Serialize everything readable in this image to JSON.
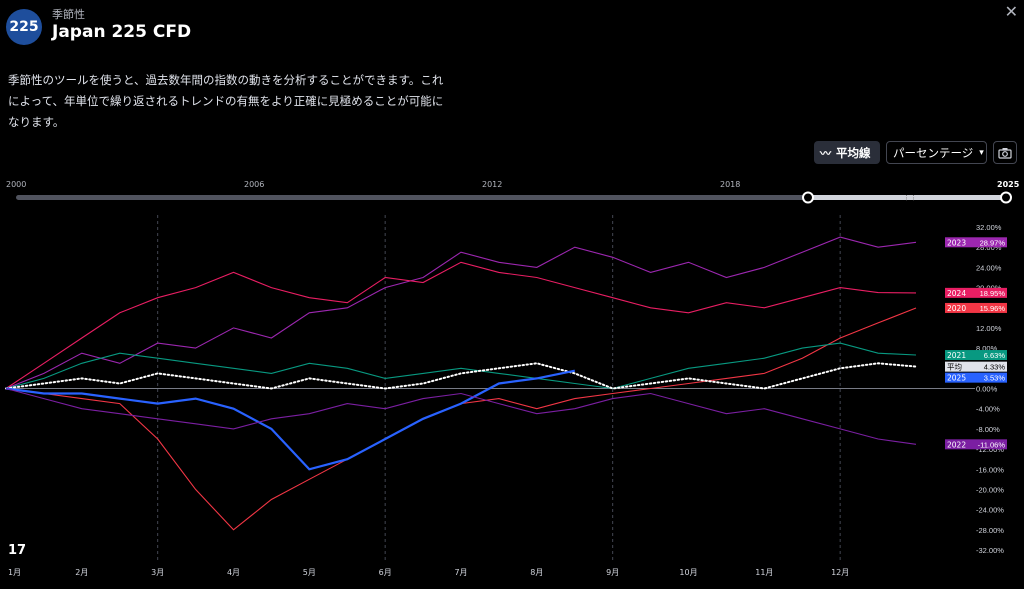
{
  "header": {
    "logo_text": "225",
    "subtitle": "季節性",
    "title": "Japan 225 CFD",
    "description": "季節性のツールを使うと、過去数年間の指数の動きを分析することができます。これによって、年単位で繰り返されるトレンドの有無をより正確に見極めることが可能になります。"
  },
  "toolbar": {
    "average_label": "平均線",
    "unit_label": "パーセンテージ"
  },
  "range": {
    "labels": [
      "2000",
      "2006",
      "2012",
      "2018",
      "2025"
    ],
    "selected_start": "2021",
    "selected_end": "2025"
  },
  "chart_data": {
    "type": "line",
    "x_label_months": [
      "1月",
      "2月",
      "3月",
      "4月",
      "5月",
      "6月",
      "7月",
      "8月",
      "9月",
      "10月",
      "11月",
      "12月"
    ],
    "y_ticks": [
      "32.00%",
      "28.00%",
      "24.00%",
      "20.00%",
      "16.00%",
      "12.00%",
      "8.00%",
      "4.00%",
      "0.00%",
      "-4.00%",
      "-8.00%",
      "-12.00%",
      "-16.00%",
      "-20.00%",
      "-24.00%",
      "-28.00%",
      "-32.00%"
    ],
    "ylim": [
      -32,
      32
    ],
    "x_unit": "month",
    "xlim": [
      0,
      12
    ],
    "series": [
      {
        "name": "2023",
        "label": "28.97%",
        "color": "#9c27b0",
        "end": 28.97,
        "x": [
          0,
          0.5,
          1,
          1.5,
          2,
          2.5,
          3,
          3.5,
          4,
          4.5,
          5,
          5.5,
          6,
          6.5,
          7,
          7.5,
          8,
          8.5,
          9,
          9.5,
          10,
          10.5,
          11,
          11.5,
          12
        ],
        "y": [
          0,
          3,
          7,
          5,
          9,
          8,
          12,
          10,
          15,
          16,
          20,
          22,
          27,
          25,
          24,
          28,
          26,
          23,
          25,
          22,
          24,
          27,
          30,
          28,
          28.97
        ]
      },
      {
        "name": "2024",
        "label": "18.95%",
        "color": "#e91e63",
        "end": 18.95,
        "x": [
          0,
          0.5,
          1,
          1.5,
          2,
          2.5,
          3,
          3.5,
          4,
          4.5,
          5,
          5.5,
          6,
          6.5,
          7,
          7.5,
          8,
          8.5,
          9,
          9.5,
          10,
          10.5,
          11,
          11.5,
          12
        ],
        "y": [
          0,
          5,
          10,
          15,
          18,
          20,
          23,
          20,
          18,
          17,
          22,
          21,
          25,
          23,
          22,
          20,
          18,
          16,
          15,
          17,
          16,
          18,
          20,
          19,
          18.95
        ]
      },
      {
        "name": "2020",
        "label": "15.96%",
        "color": "#f23645",
        "end": 15.96,
        "x": [
          0,
          0.5,
          1,
          1.5,
          2,
          2.5,
          3,
          3.5,
          4,
          4.5,
          5,
          5.5,
          6,
          6.5,
          7,
          7.5,
          8,
          8.5,
          9,
          9.5,
          10,
          10.5,
          11,
          11.5,
          12
        ],
        "y": [
          0,
          -1,
          -2,
          -3,
          -10,
          -20,
          -28,
          -22,
          -18,
          -14,
          -10,
          -6,
          -3,
          -2,
          -4,
          -2,
          -1,
          0,
          1,
          2,
          3,
          6,
          10,
          13,
          15.96
        ]
      },
      {
        "name": "2021",
        "label": "6.63%",
        "color": "#089981",
        "end": 6.63,
        "x": [
          0,
          0.5,
          1,
          1.5,
          2,
          2.5,
          3,
          3.5,
          4,
          4.5,
          5,
          5.5,
          6,
          6.5,
          7,
          7.5,
          8,
          8.5,
          9,
          9.5,
          10,
          10.5,
          11,
          11.5,
          12
        ],
        "y": [
          0,
          2,
          5,
          7,
          6,
          5,
          4,
          3,
          5,
          4,
          2,
          3,
          4,
          3,
          2,
          1,
          0,
          2,
          4,
          5,
          6,
          8,
          9,
          7,
          6.63
        ]
      },
      {
        "name": "平均",
        "label": "4.33%",
        "color": "#ffffff",
        "end": 4.33,
        "dotted": true,
        "x": [
          0,
          0.5,
          1,
          1.5,
          2,
          2.5,
          3,
          3.5,
          4,
          4.5,
          5,
          5.5,
          6,
          6.5,
          7,
          7.5,
          8,
          8.5,
          9,
          9.5,
          10,
          10.5,
          11,
          11.5,
          12
        ],
        "y": [
          0,
          1,
          2,
          1,
          3,
          2,
          1,
          0,
          2,
          1,
          0,
          1,
          3,
          4,
          5,
          3,
          0,
          1,
          2,
          1,
          0,
          2,
          4,
          5,
          4.33
        ]
      },
      {
        "name": "2025",
        "label": "3.53%",
        "color": "#2962ff",
        "end": 3.53,
        "x": [
          0,
          0.5,
          1,
          1.5,
          2,
          2.5,
          3,
          3.5,
          4,
          4.5,
          5,
          5.5,
          6,
          6.5,
          7,
          7.5
        ],
        "y": [
          0,
          -1,
          -1,
          -2,
          -3,
          -2,
          -4,
          -8,
          -16,
          -14,
          -10,
          -6,
          -3,
          1,
          2,
          3.53
        ]
      },
      {
        "name": "2022",
        "label": "-11.06%",
        "color": "#7b1fa2",
        "end": -11.06,
        "x": [
          0,
          0.5,
          1,
          1.5,
          2,
          2.5,
          3,
          3.5,
          4,
          4.5,
          5,
          5.5,
          6,
          6.5,
          7,
          7.5,
          8,
          8.5,
          9,
          9.5,
          10,
          10.5,
          11,
          11.5,
          12
        ],
        "y": [
          0,
          -2,
          -4,
          -5,
          -6,
          -7,
          -8,
          -6,
          -5,
          -3,
          -4,
          -2,
          -1,
          -3,
          -5,
          -4,
          -2,
          -1,
          -3,
          -5,
          -4,
          -6,
          -8,
          -10,
          -11.06
        ]
      }
    ]
  }
}
